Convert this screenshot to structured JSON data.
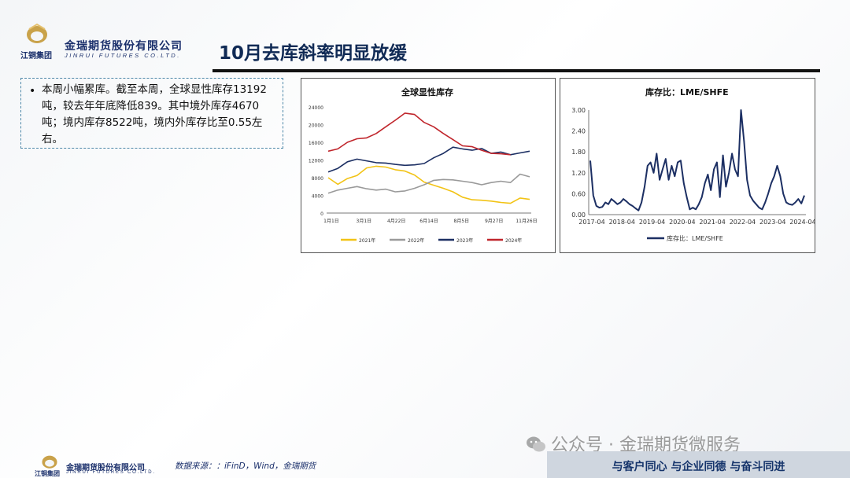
{
  "brand": {
    "group_name": "江铜集团",
    "company_cn": "金瑞期货股份有限公司",
    "company_en": "JINRUI FUTURES CO.LTD.",
    "gold": "#c9a24a",
    "navy": "#1a2f6b"
  },
  "page_title": "10月去库斜率明显放缓",
  "note": {
    "text": "本周小幅累库。截至本周，全球显性库存13192吨，较去年年底降低839。其中境外库存4670吨；境内库存8522吨，境内外库存比至0.55左右。"
  },
  "chart_data": [
    {
      "type": "line",
      "title": "全球显性库存",
      "x_ticks": [
        "1月1日",
        "3月1日",
        "4月22日",
        "6月14日",
        "8月5日",
        "9月27日",
        "11月26日"
      ],
      "ylim": [
        0,
        24000
      ],
      "y_ticks": [
        "0",
        "4000",
        "8000",
        "12000",
        "16000",
        "20000",
        "24000"
      ],
      "legend_position": "bottom",
      "series": [
        {
          "name": "2021年",
          "color": "#f2c315",
          "values": [
            8000,
            6500,
            7800,
            8500,
            10200,
            10600,
            10400,
            9800,
            9500,
            8600,
            7000,
            6300,
            5600,
            4800,
            3600,
            3000,
            2900,
            2700,
            2400,
            2200,
            3400,
            3100
          ]
        },
        {
          "name": "2022年",
          "color": "#9a9a9a",
          "values": [
            4500,
            5200,
            5600,
            6000,
            5500,
            5200,
            5400,
            4800,
            5000,
            5600,
            6400,
            7400,
            7600,
            7500,
            7200,
            6900,
            6400,
            6900,
            7200,
            6900,
            8800,
            8200
          ]
        },
        {
          "name": "2023年",
          "color": "#1c2f63",
          "values": [
            9300,
            10100,
            11600,
            12200,
            11800,
            11400,
            11300,
            11000,
            10800,
            10900,
            11200,
            12500,
            13500,
            14900,
            14500,
            14200,
            14600,
            13500,
            13800,
            13200,
            13600,
            14000
          ]
        },
        {
          "name": "2024年",
          "color": "#c0262c",
          "values": [
            14000,
            14500,
            16000,
            16800,
            17000,
            18000,
            19500,
            21000,
            22600,
            22300,
            20500,
            19500,
            18000,
            16600,
            15200,
            15000,
            14200,
            13500,
            13400,
            13192
          ]
        }
      ]
    },
    {
      "type": "line",
      "title": "库存比：LME/SHFE",
      "x_ticks": [
        "2017-04",
        "2018-04",
        "2019-04",
        "2020-04",
        "2021-04",
        "2022-04",
        "2023-04",
        "2024-04"
      ],
      "ylim": [
        0,
        3.0
      ],
      "y_ticks": [
        "0.00",
        "0.60",
        "1.20",
        "1.80",
        "2.40",
        "3.00"
      ],
      "legend_position": "bottom",
      "series": [
        {
          "name": "库存比：LME/SHFE",
          "color": "#1c2f63",
          "values": [
            1.55,
            0.55,
            0.25,
            0.2,
            0.22,
            0.35,
            0.3,
            0.45,
            0.38,
            0.3,
            0.35,
            0.45,
            0.38,
            0.3,
            0.25,
            0.18,
            0.12,
            0.35,
            0.8,
            1.4,
            1.5,
            1.2,
            1.75,
            1.0,
            1.3,
            1.6,
            1.0,
            1.4,
            1.1,
            1.5,
            1.55,
            0.9,
            0.5,
            0.15,
            0.2,
            0.15,
            0.3,
            0.5,
            0.9,
            1.15,
            0.7,
            1.3,
            1.5,
            0.5,
            1.7,
            0.8,
            1.2,
            1.75,
            1.3,
            1.1,
            3.0,
            2.1,
            1.0,
            0.55,
            0.4,
            0.3,
            0.2,
            0.15,
            0.35,
            0.6,
            0.9,
            1.1,
            1.4,
            1.1,
            0.6,
            0.35,
            0.3,
            0.28,
            0.35,
            0.45,
            0.32,
            0.55
          ]
        }
      ]
    }
  ],
  "footer": {
    "source": "数据来源：：iFinD，Wind，金瑞期货",
    "slogan": "与客户同心 与企业同德 与奋斗同进",
    "watermark": "公众号 · 金瑞期货微服务"
  }
}
